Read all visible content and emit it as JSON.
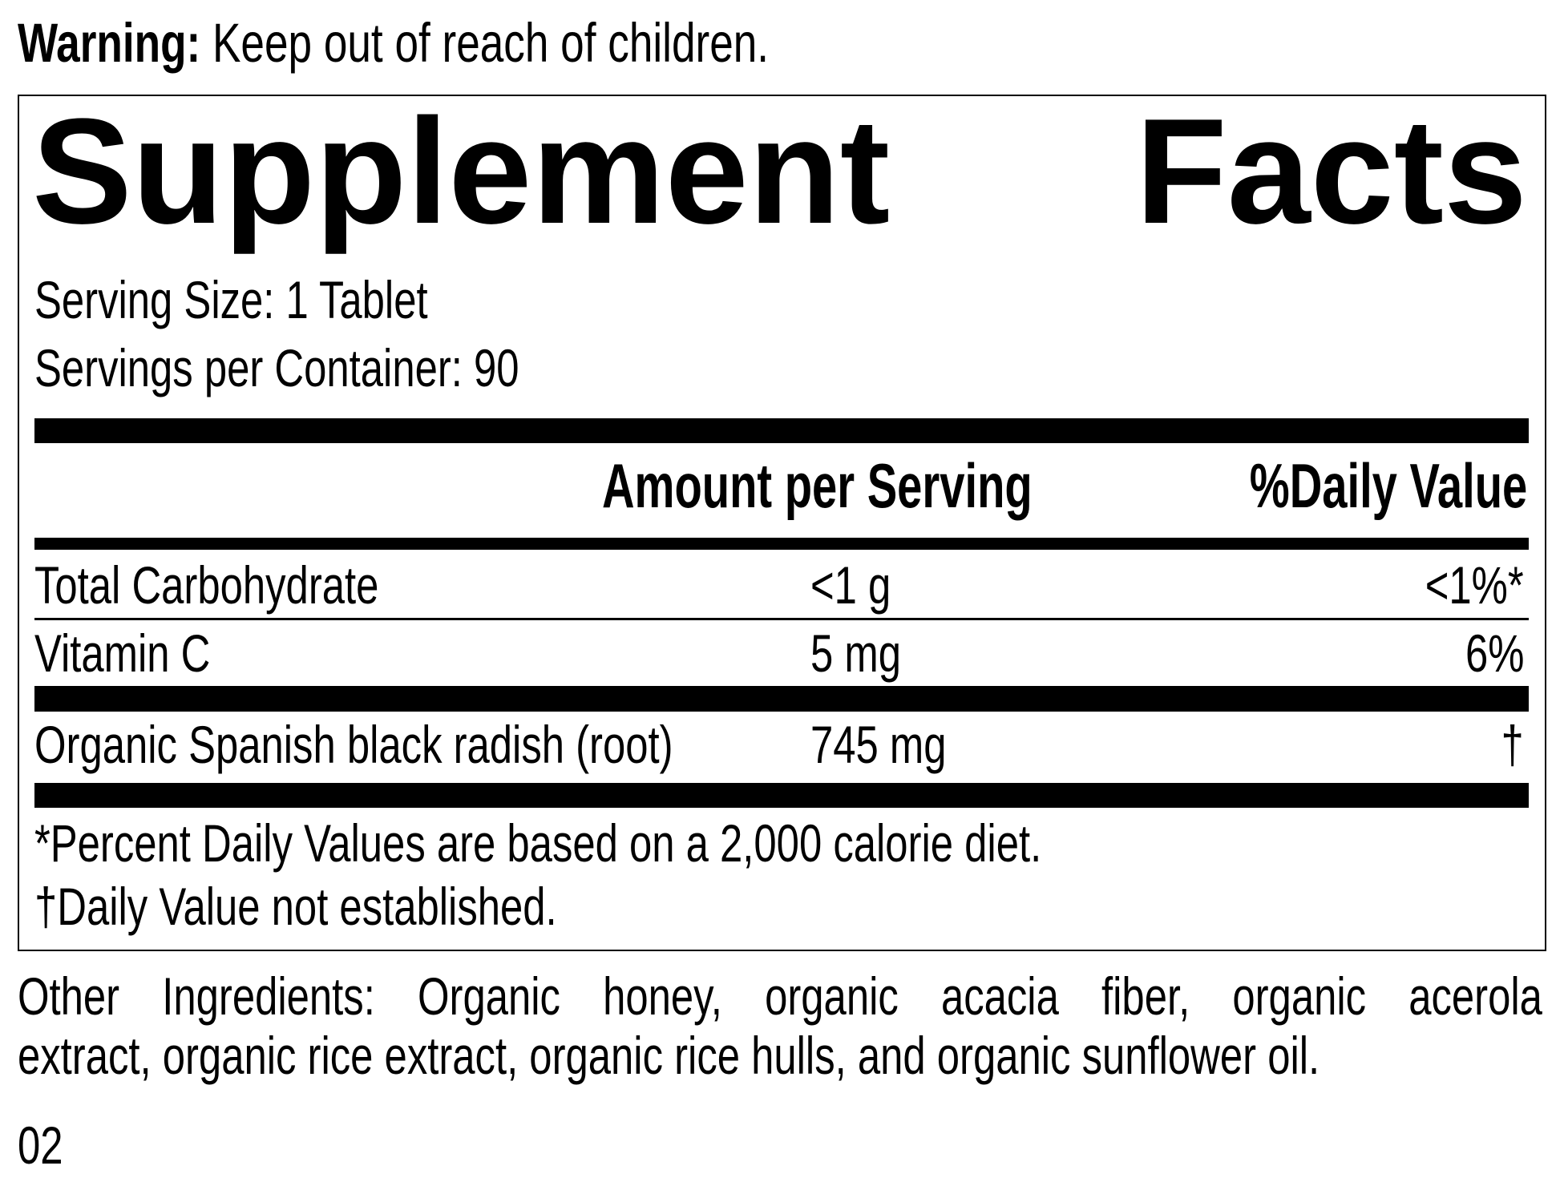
{
  "warning": {
    "label": "Warning:",
    "text": "Keep out of reach of children."
  },
  "title": {
    "word1": "Supplement",
    "word2": "Facts"
  },
  "serving_size": "Serving Size: 1 Tablet",
  "servings_per_container": "Servings per Container: 90",
  "table": {
    "headers": {
      "amount": "Amount per Serving",
      "dv": "%Daily Value"
    },
    "rows": [
      {
        "name": "Total Carbohydrate",
        "amount": "<1 g",
        "dv": "<1%*"
      },
      {
        "name": "Vitamin C",
        "amount": "5 mg",
        "dv": "6%"
      },
      {
        "name": "Organic Spanish black radish (root)",
        "amount": "745 mg",
        "dv": "†"
      }
    ]
  },
  "footnotes": [
    "*Percent Daily Values are based on a 2,000 calorie diet.",
    "†Daily Value not established."
  ],
  "other_ingredients": {
    "line1": "Other Ingredients: Organic honey, organic acacia fiber, organic acerola",
    "line2": "extract, organic rice extract, organic rice hulls, and organic sunflower oil."
  },
  "code": "02"
}
